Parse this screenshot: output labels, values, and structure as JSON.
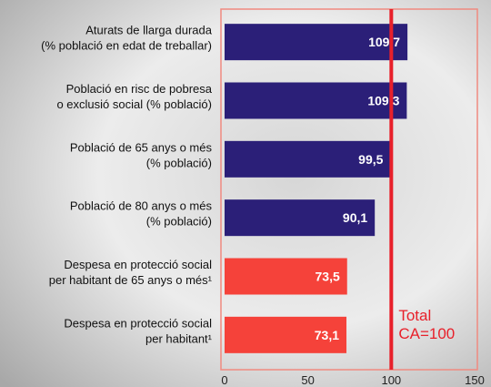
{
  "chart_data": {
    "type": "hbar",
    "categories": [
      [
        "Aturats de llarga durada",
        "(% població en edat de treballar)"
      ],
      [
        "Població en risc de pobresa",
        "o exclusió social (% població)"
      ],
      [
        "Població de 65 anys o més",
        "(% població)"
      ],
      [
        "Població de 80 anys o més",
        "(% població)"
      ],
      [
        "Despesa en protecció social",
        "per habitant de 65 anys o més¹"
      ],
      [
        "Despesa en protecció social",
        "per habitant¹"
      ]
    ],
    "values": [
      109.7,
      109.3,
      99.5,
      90.1,
      73.5,
      73.1
    ],
    "value_labels": [
      "109,7",
      "109,3",
      "99,5",
      "90,1",
      "73,5",
      "73,1"
    ],
    "colors": [
      "#2b1f78",
      "#2b1f78",
      "#2b1f78",
      "#2b1f78",
      "#f5423a",
      "#f5423a"
    ],
    "xlim": [
      0,
      150
    ],
    "xticks": [
      0,
      50,
      100,
      150
    ],
    "reference_line": {
      "value": 100,
      "color": "#e8202a",
      "label": [
        "Total",
        "CA=100"
      ]
    }
  }
}
